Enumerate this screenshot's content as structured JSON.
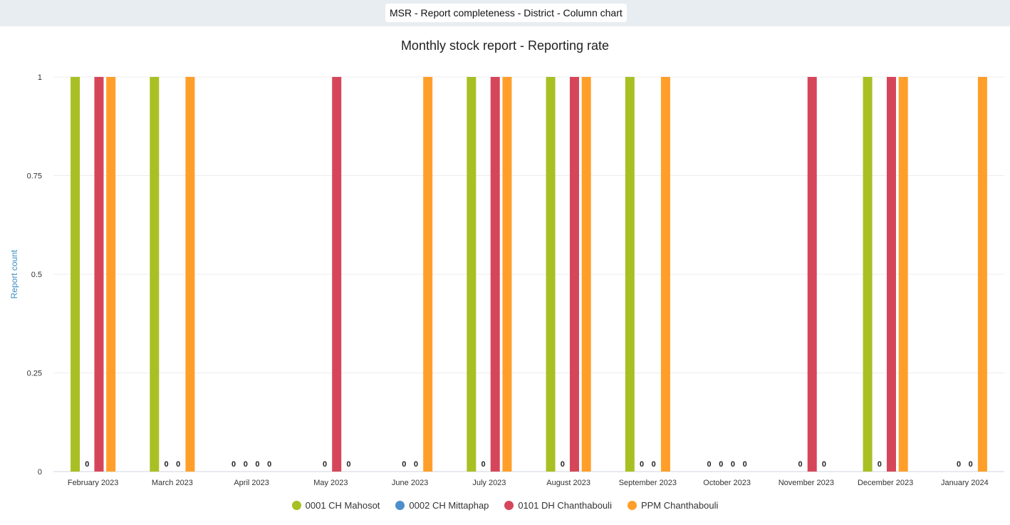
{
  "header": {
    "title": "MSR - Report completeness - District - Column chart"
  },
  "chart_data": {
    "type": "bar",
    "title": "Monthly stock report - Reporting rate",
    "xlabel": "",
    "ylabel": "Report count",
    "ylim": [
      0,
      1
    ],
    "yticks": [
      "0",
      "0.25",
      "0.5",
      "0.75",
      "1"
    ],
    "grid": true,
    "legend_position": "bottom",
    "categories": [
      "February 2023",
      "March 2023",
      "April 2023",
      "May 2023",
      "June 2023",
      "July 2023",
      "August 2023",
      "September 2023",
      "October 2023",
      "November 2023",
      "December 2023",
      "January 2024"
    ],
    "series": [
      {
        "name": "0001 CH Mahosot",
        "color": "#a8c023",
        "values": [
          1,
          1,
          0,
          null,
          null,
          1,
          1,
          1,
          0,
          null,
          1,
          null
        ]
      },
      {
        "name": "0002 CH Mittaphap",
        "color": "#4e8fca",
        "values": [
          0,
          0,
          0,
          0,
          0,
          0,
          0,
          0,
          0,
          0,
          0,
          0
        ]
      },
      {
        "name": "0101 DH Chanthabouli",
        "color": "#d6465a",
        "values": [
          1,
          0,
          0,
          1,
          0,
          1,
          1,
          0,
          0,
          1,
          1,
          0
        ]
      },
      {
        "name": "PPM Chanthabouli",
        "color": "#ff9f2a",
        "values": [
          1,
          1,
          0,
          0,
          1,
          1,
          1,
          1,
          0,
          0,
          1,
          1
        ]
      }
    ]
  }
}
